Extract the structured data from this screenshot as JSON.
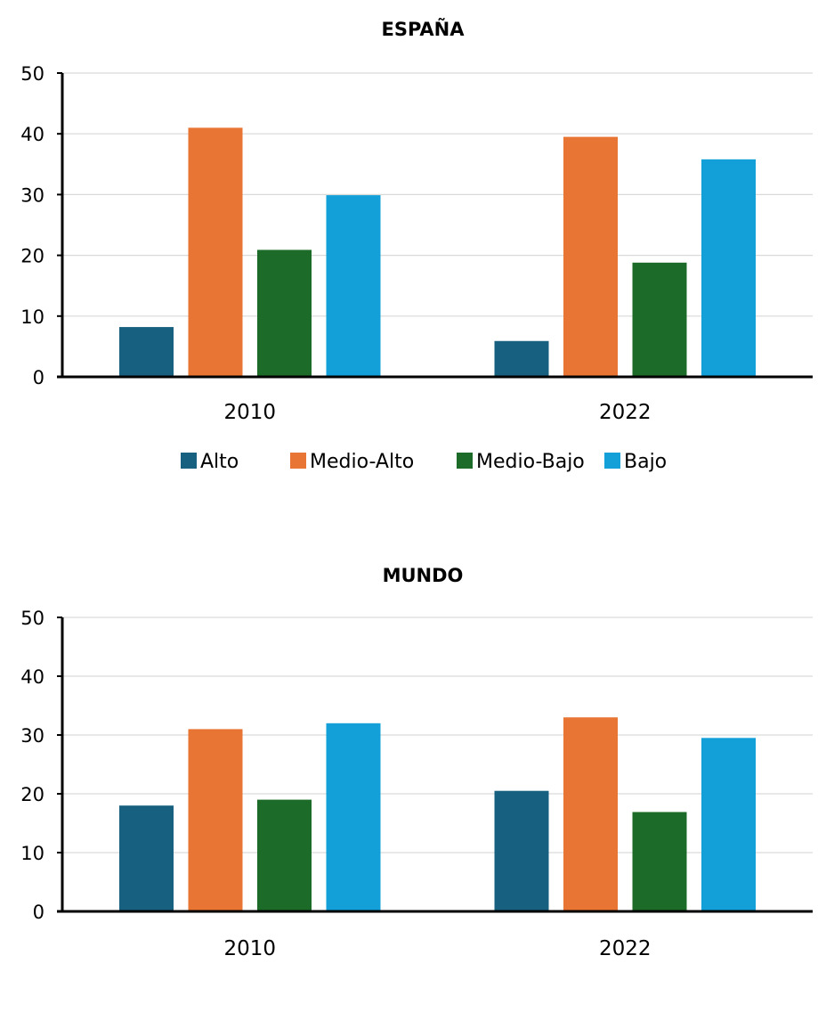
{
  "chart_data": [
    {
      "type": "bar",
      "title": "ESPAÑA",
      "categories": [
        "2010",
        "2022"
      ],
      "series": [
        {
          "name": "Alto",
          "color": "#17607f",
          "values": [
            8.2,
            5.9
          ]
        },
        {
          "name": "Medio-Alto",
          "color": "#e87534",
          "values": [
            41,
            39.5
          ]
        },
        {
          "name": "Medio-Bajo",
          "color": "#1d6b28",
          "values": [
            20.9,
            18.8
          ]
        },
        {
          "name": "Bajo",
          "color": "#13a0d8",
          "values": [
            29.9,
            35.8
          ]
        }
      ],
      "ylim": [
        0,
        50
      ],
      "yticks": [
        "0",
        "10",
        "20",
        "30",
        "40",
        "50"
      ],
      "grid": true,
      "legend": "bottom"
    },
    {
      "type": "bar",
      "title": "MUNDO",
      "categories": [
        "2010",
        "2022"
      ],
      "series": [
        {
          "name": "Alto",
          "color": "#17607f",
          "values": [
            18,
            20.5
          ]
        },
        {
          "name": "Medio-Alto",
          "color": "#e87534",
          "values": [
            31,
            33
          ]
        },
        {
          "name": "Medio-Bajo",
          "color": "#1d6b28",
          "values": [
            19,
            16.9
          ]
        },
        {
          "name": "Bajo",
          "color": "#13a0d8",
          "values": [
            32,
            29.5
          ]
        }
      ],
      "ylim": [
        0,
        50
      ],
      "yticks": [
        "0",
        "10",
        "20",
        "30",
        "40",
        "50"
      ],
      "grid": true,
      "legend": "none"
    }
  ]
}
